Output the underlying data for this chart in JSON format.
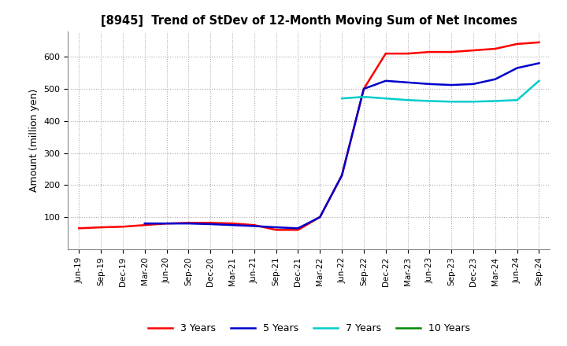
{
  "title": "[8945]  Trend of StDev of 12-Month Moving Sum of Net Incomes",
  "ylabel": "Amount (million yen)",
  "background_color": "#ffffff",
  "grid_color": "#aaaaaa",
  "legend": [
    "3 Years",
    "5 Years",
    "7 Years",
    "10 Years"
  ],
  "legend_colors": [
    "#ff0000",
    "#0000cc",
    "#00cccc",
    "#008800"
  ],
  "x_labels": [
    "Jun-19",
    "Sep-19",
    "Dec-19",
    "Mar-20",
    "Jun-20",
    "Sep-20",
    "Dec-20",
    "Mar-21",
    "Jun-21",
    "Sep-21",
    "Dec-21",
    "Mar-22",
    "Jun-22",
    "Sep-22",
    "Dec-22",
    "Mar-23",
    "Jun-23",
    "Sep-23",
    "Dec-23",
    "Mar-24",
    "Jun-24",
    "Sep-24"
  ],
  "ylim": [
    0,
    680
  ],
  "yticks": [
    100,
    200,
    300,
    400,
    500,
    600
  ],
  "series_3y_x": [
    0,
    1,
    2,
    3,
    4,
    5,
    6,
    7,
    8,
    9,
    10,
    11,
    12,
    13,
    14,
    15,
    16,
    17,
    18,
    19,
    20,
    21
  ],
  "series_3y_y": [
    65,
    68,
    70,
    75,
    80,
    82,
    82,
    80,
    75,
    60,
    60,
    100,
    230,
    500,
    610,
    610,
    615,
    615,
    620,
    625,
    640,
    645
  ],
  "series_5y_x": [
    3,
    4,
    5,
    6,
    7,
    8,
    9,
    10,
    11,
    12,
    13,
    14,
    15,
    16,
    17,
    18,
    19,
    20,
    21
  ],
  "series_5y_y": [
    80,
    80,
    80,
    78,
    75,
    72,
    68,
    65,
    100,
    230,
    500,
    525,
    520,
    515,
    512,
    515,
    530,
    565,
    580
  ],
  "series_7y_x": [
    12,
    13,
    14,
    15,
    16,
    17,
    18,
    19,
    20,
    21
  ],
  "series_7y_y": [
    470,
    475,
    470,
    465,
    462,
    460,
    460,
    462,
    465,
    525
  ],
  "series_10y_x": [],
  "series_10y_y": []
}
